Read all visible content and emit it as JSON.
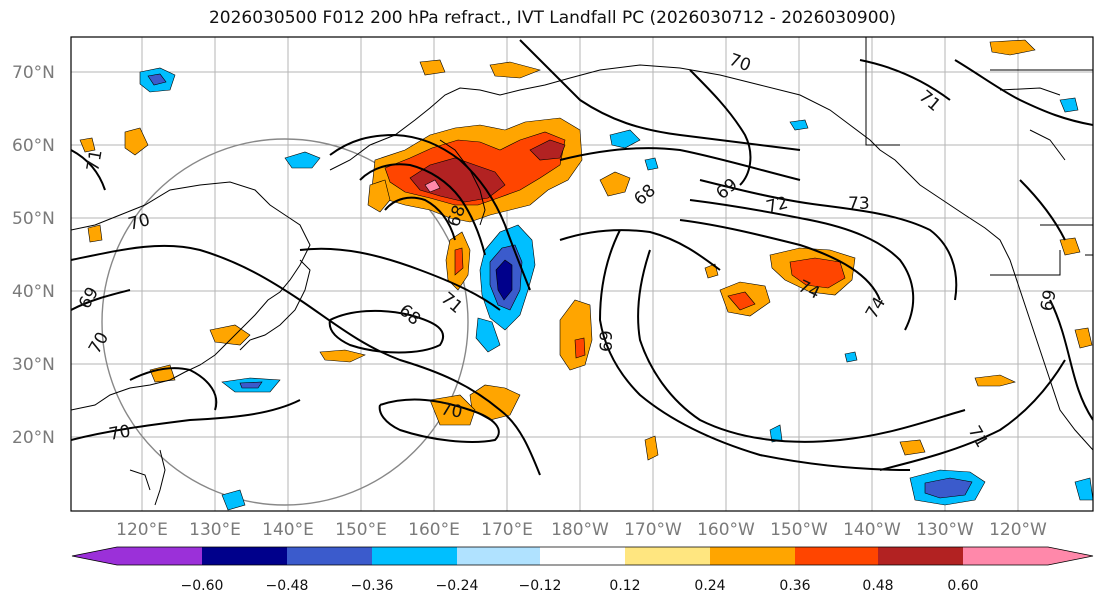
{
  "title": "2026030500 F012 200 hPa refract., IVT Landfall PC (2026030712 - 2026030900)",
  "lat_labels": [
    "20°N",
    "30°N",
    "40°N",
    "50°N",
    "60°N",
    "70°N"
  ],
  "lon_labels": [
    "120°E",
    "130°E",
    "140°E",
    "150°E",
    "160°E",
    "170°E",
    "180°W",
    "170°W",
    "160°W",
    "150°W",
    "140°W",
    "130°W",
    "120°W"
  ],
  "contour_labels": [
    "70",
    "71",
    "68",
    "69",
    "72",
    "73",
    "74",
    "71",
    "69",
    "70",
    "68",
    "69",
    "70",
    "70",
    "74",
    "71",
    "68",
    "70",
    "69",
    "71"
  ],
  "colorbar": {
    "ticks": [
      "−0.60",
      "−0.48",
      "−0.36",
      "−0.24",
      "−0.12",
      "0.12",
      "0.24",
      "0.36",
      "0.48",
      "0.60"
    ],
    "colors": [
      "#9b30d9",
      "#00008b",
      "#3b5bcc",
      "#00bfff",
      "#b0e2ff",
      "#ffffff",
      "#ffe680",
      "#ffa500",
      "#ff4500",
      "#b22222",
      "#ff88aa"
    ]
  }
}
